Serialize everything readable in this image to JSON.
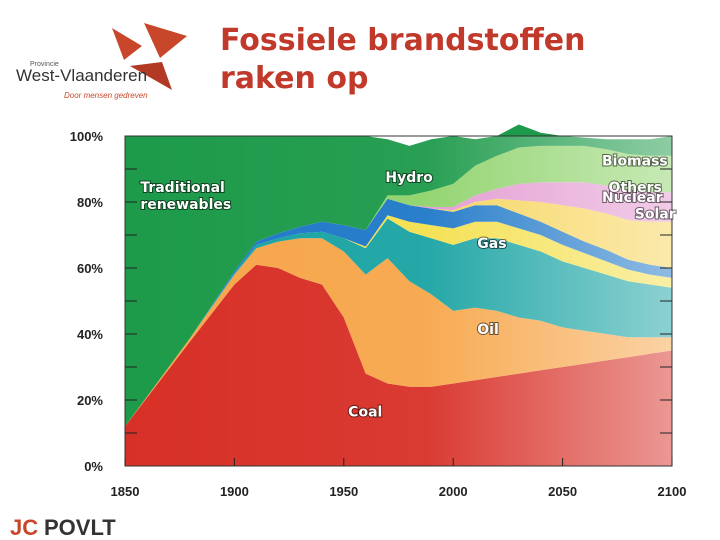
{
  "header": {
    "title_line1": "Fossiele brandstoffen",
    "title_line2": "raken op"
  },
  "logo_top": {
    "small": "Provincie",
    "name": "West-Vlaanderen",
    "tagline": "Door mensen gedreven",
    "colors": [
      "#c8472b",
      "#b23a24"
    ]
  },
  "logo_bottom": {
    "name": "POVLT",
    "mark": "JC"
  },
  "chart_data": {
    "type": "area",
    "stacked": true,
    "normalized": true,
    "x": [
      1850,
      1880,
      1900,
      1910,
      1920,
      1930,
      1940,
      1950,
      1960,
      1970,
      1980,
      1990,
      2000,
      2010,
      2020,
      2030,
      2040,
      2050,
      2060,
      2070,
      2080,
      2090,
      2100
    ],
    "xticks": [
      "1850",
      "1900",
      "1950",
      "2000",
      "2050",
      "2100"
    ],
    "xlim": [
      1850,
      2100
    ],
    "yticks": [
      "0%",
      "20%",
      "40%",
      "60%",
      "80%",
      "100%"
    ],
    "ylim": [
      0,
      100
    ],
    "title": "",
    "xlabel": "",
    "ylabel": "",
    "series": [
      {
        "name": "Coal",
        "color": "#d73027",
        "label_at": [
          1952,
          15
        ],
        "values": [
          12,
          38,
          55,
          61,
          60,
          57,
          55,
          45,
          28,
          25,
          24,
          24,
          25,
          26,
          27,
          28,
          29,
          30,
          31,
          32,
          33,
          34,
          35
        ]
      },
      {
        "name": "Oil",
        "color": "#f7a64a",
        "label_at": [
          2011,
          40
        ],
        "values": [
          0,
          1,
          3,
          5,
          8,
          12,
          14,
          20,
          30,
          38,
          32,
          28,
          22,
          22,
          20,
          17,
          15,
          12,
          10,
          8,
          6,
          5,
          4
        ]
      },
      {
        "name": "Gas",
        "color": "#1aa3a3",
        "label_at": [
          2011,
          66
        ],
        "values": [
          0,
          0,
          0.5,
          1,
          1,
          1.5,
          2,
          4,
          8,
          12,
          15,
          17,
          20,
          21,
          22,
          22,
          21,
          20,
          19,
          18,
          17,
          16,
          15
        ]
      },
      {
        "name": "Nuclear",
        "color": "#f4e04d",
        "label_at": [
          2068,
          80
        ],
        "values": [
          0,
          0,
          0,
          0,
          0,
          0,
          0,
          0,
          0.5,
          1,
          3,
          4,
          5,
          5,
          5,
          5,
          5,
          5,
          4.5,
          4,
          3.5,
          3,
          3
        ]
      },
      {
        "name": "Hydro",
        "color": "#1f78c8",
        "label_at": [
          1969,
          86
        ],
        "values": [
          0,
          0,
          0.5,
          1,
          1.5,
          2,
          3,
          4,
          5,
          5,
          5,
          5,
          5,
          5,
          5,
          4.5,
          4,
          4,
          3.5,
          3.5,
          3,
          3,
          3
        ]
      },
      {
        "name": "Solar",
        "color": "#f7d45a",
        "label_at": [
          2083,
          75
        ],
        "values": [
          0,
          0,
          0,
          0,
          0,
          0,
          0,
          0,
          0,
          0,
          0,
          0,
          0.5,
          1,
          2,
          4,
          6,
          8,
          10,
          11,
          12,
          13,
          14
        ]
      },
      {
        "name": "Others",
        "color": "#e39ad1",
        "label_at": [
          2071,
          83
        ],
        "values": [
          0,
          0,
          0,
          0,
          0,
          0,
          0,
          0,
          0,
          0,
          0,
          0.5,
          1,
          2,
          3,
          5,
          6,
          7,
          8,
          8.5,
          9,
          9,
          9
        ]
      },
      {
        "name": "Biomass",
        "color": "#8fd36b",
        "label_at": [
          2068,
          91
        ],
        "values": [
          0,
          0,
          0,
          0,
          0,
          0,
          0,
          0,
          0,
          1,
          3,
          5,
          7,
          9,
          10,
          11,
          11,
          11,
          11,
          11,
          11,
          11,
          11
        ]
      },
      {
        "name": "Traditional renewables",
        "label_lines": [
          "Traditional",
          "renewables"
        ],
        "color": "#1d9a4a",
        "label_at": [
          1857,
          83
        ],
        "values": [
          88,
          61,
          41,
          32,
          29.5,
          27.5,
          26,
          27,
          28.5,
          17,
          15,
          15.5,
          14.5,
          8,
          6,
          7,
          4,
          3,
          2.5,
          3,
          4.5,
          5,
          6
        ]
      }
    ]
  }
}
